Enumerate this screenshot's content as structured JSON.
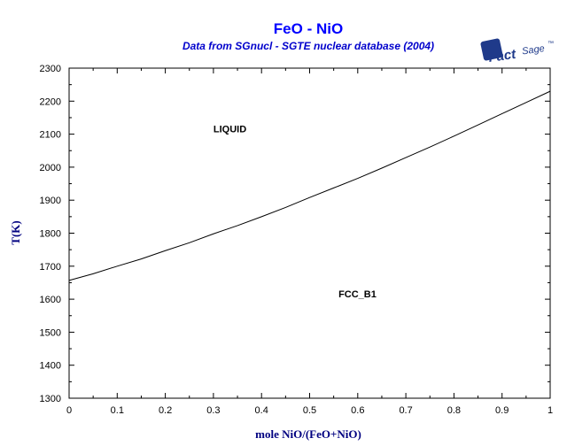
{
  "chart_data": {
    "type": "line",
    "title": "FeO - NiO",
    "subtitle": "Data from SGnucl - SGTE nuclear database (2004)",
    "xlabel": "mole NiO/(FeO+NiO)",
    "ylabel": "T(K)",
    "xlim": [
      0,
      1
    ],
    "ylim": [
      1300,
      2300
    ],
    "x_ticks": [
      0,
      0.1,
      0.2,
      0.3,
      0.4,
      0.5,
      0.6,
      0.7,
      0.8,
      0.9,
      1
    ],
    "x_tick_labels": [
      "0",
      "0.1",
      "0.2",
      "0.3",
      "0.4",
      "0.5",
      "0.6",
      "0.7",
      "0.8",
      "0.9",
      "1"
    ],
    "y_ticks": [
      1300,
      1400,
      1500,
      1600,
      1700,
      1800,
      1900,
      2000,
      2100,
      2200,
      2300
    ],
    "y_tick_labels": [
      "1300",
      "1400",
      "1500",
      "1600",
      "1700",
      "1800",
      "1900",
      "2000",
      "2100",
      "2200",
      "2300"
    ],
    "grid": false,
    "series": [
      {
        "x": [
          0,
          0.05,
          0.1,
          0.15,
          0.2,
          0.25,
          0.3,
          0.35,
          0.4,
          0.45,
          0.5,
          0.55,
          0.6,
          0.65,
          0.7,
          0.75,
          0.8,
          0.85,
          0.9,
          0.95,
          1
        ],
        "y": [
          1657,
          1677,
          1700,
          1722,
          1747,
          1771,
          1798,
          1823,
          1850,
          1878,
          1908,
          1937,
          1966,
          1997,
          2029,
          2061,
          2094,
          2128,
          2162,
          2196,
          2230
        ],
        "color": "#000000"
      }
    ],
    "annotations": [
      {
        "text": "LIQUID",
        "x": 0.3,
        "y": 2105
      },
      {
        "text": "FCC_B1",
        "x": 0.56,
        "y": 1605
      }
    ]
  },
  "logo": {
    "brand": "FactSage",
    "brand_main": "Fact",
    "brand_sub": "Sage",
    "trademark": "™",
    "color": "#1f3a8a"
  },
  "colors": {
    "title": "#0000ff",
    "subtitle": "#0000cc",
    "axis_label": "#000080",
    "line": "#000000"
  }
}
